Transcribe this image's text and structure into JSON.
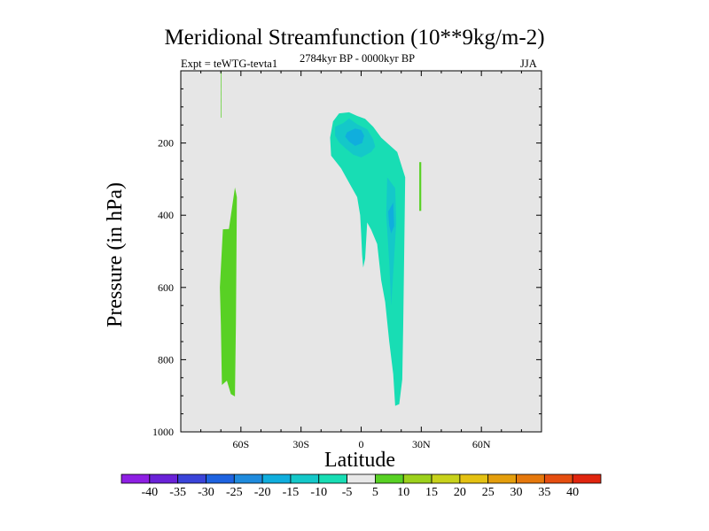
{
  "chart_data": {
    "type": "contour",
    "title": "Meridional Streamfunction (10**9kg/m-2)",
    "subtitle_left": "Expt = teWTG-tevta1",
    "subtitle_center": "2784kyr BP - 0000kyr BP",
    "subtitle_right": "JJA",
    "xlabel": "Latitude",
    "ylabel": "Pressure (in hPa)",
    "xlim": [
      -90,
      90
    ],
    "ylim": [
      1000,
      0
    ],
    "x_ticks": [
      {
        "value": -60,
        "label": "60S"
      },
      {
        "value": -30,
        "label": "30S"
      },
      {
        "value": 0,
        "label": "0"
      },
      {
        "value": 30,
        "label": "30N"
      },
      {
        "value": 60,
        "label": "60N"
      }
    ],
    "y_ticks": [
      {
        "value": 200,
        "label": "200"
      },
      {
        "value": 400,
        "label": "400"
      },
      {
        "value": 600,
        "label": "600"
      },
      {
        "value": 800,
        "label": "800"
      },
      {
        "value": 1000,
        "label": "1000"
      }
    ],
    "background_color": "#e6e6e6",
    "colorbar": {
      "labels": [
        "-40",
        "-35",
        "-30",
        "-25",
        "-20",
        "-15",
        "-10",
        "-5",
        "5",
        "10",
        "15",
        "20",
        "25",
        "30",
        "35",
        "40"
      ],
      "colors": [
        "#8e1fe3",
        "#6a22d8",
        "#3a44d9",
        "#1e63e0",
        "#1f8bdd",
        "#10aedd",
        "#14c8c9",
        "#18ddb4",
        "#e8e8e8",
        "#58d124",
        "#9cd11c",
        "#c8d21b",
        "#e4c112",
        "#e49e0c",
        "#e5780c",
        "#e54e10",
        "#e0250f"
      ]
    },
    "regions": [
      {
        "name": "positive-cell-sh",
        "color": "#58d124",
        "points": [
          [
            -69,
            439
          ],
          [
            -66,
            438
          ],
          [
            -63,
            323
          ],
          [
            -62,
            350
          ],
          [
            -62.5,
            700
          ],
          [
            -63,
            902
          ],
          [
            -65,
            895
          ],
          [
            -67,
            858
          ],
          [
            -69.5,
            870
          ],
          [
            -70,
            700
          ],
          [
            -70.5,
            600
          ]
        ]
      },
      {
        "name": "positive-thin-line",
        "color": "#58d124",
        "points": [
          [
            -70,
            0
          ],
          [
            -69.7,
            0
          ],
          [
            -69.8,
            130
          ],
          [
            -70.1,
            130
          ]
        ]
      },
      {
        "name": "positive-cell-nh",
        "color": "#58d124",
        "points": [
          [
            29,
            253
          ],
          [
            30,
            253
          ],
          [
            30,
            388
          ],
          [
            29,
            388
          ]
        ]
      },
      {
        "name": "negative-main",
        "color": "#18ddb4",
        "points": [
          [
            -15,
            235
          ],
          [
            -15.5,
            185
          ],
          [
            -14,
            140
          ],
          [
            -11,
            118
          ],
          [
            -6,
            115
          ],
          [
            -2,
            125
          ],
          [
            2,
            133
          ],
          [
            6,
            155
          ],
          [
            10,
            185
          ],
          [
            18,
            225
          ],
          [
            22,
            295
          ],
          [
            21.5,
            500
          ],
          [
            21,
            700
          ],
          [
            20.5,
            855
          ],
          [
            19,
            923
          ],
          [
            17,
            928
          ],
          [
            16,
            840
          ],
          [
            14,
            750
          ],
          [
            12,
            640
          ],
          [
            10,
            580
          ],
          [
            8,
            480
          ],
          [
            5,
            440
          ],
          [
            3,
            420
          ],
          [
            2,
            520
          ],
          [
            1,
            545
          ],
          [
            0.5,
            510
          ],
          [
            0,
            450
          ],
          [
            -0.5,
            400
          ],
          [
            -2,
            350
          ],
          [
            -6,
            310
          ],
          [
            -10,
            270
          ]
        ]
      },
      {
        "name": "negative-inner",
        "color": "#14c8c9",
        "points": [
          [
            -13,
            180
          ],
          [
            -13,
            155
          ],
          [
            -9,
            145
          ],
          [
            -6,
            132
          ],
          [
            -2,
            148
          ],
          [
            3,
            162
          ],
          [
            6,
            190
          ],
          [
            7,
            210
          ],
          [
            5,
            225
          ],
          [
            0,
            240
          ],
          [
            -4,
            232
          ],
          [
            -8,
            214
          ],
          [
            -11,
            198
          ]
        ]
      },
      {
        "name": "negative-inner-tail",
        "color": "#14c8c9",
        "points": [
          [
            13,
            295
          ],
          [
            17,
            325
          ],
          [
            17.5,
            420
          ],
          [
            16,
            560
          ],
          [
            15,
            650
          ],
          [
            14,
            530
          ],
          [
            12.5,
            400
          ]
        ]
      },
      {
        "name": "negative-core",
        "color": "#10aedd",
        "points": [
          [
            -7,
            170
          ],
          [
            -3,
            160
          ],
          [
            0,
            164
          ],
          [
            1.5,
            180
          ],
          [
            0.5,
            200
          ],
          [
            -3,
            208
          ],
          [
            -6,
            196
          ],
          [
            -8,
            182
          ]
        ]
      },
      {
        "name": "negative-core-tail",
        "color": "#10aedd",
        "points": [
          [
            13.5,
            390
          ],
          [
            16,
            365
          ],
          [
            16.5,
            430
          ],
          [
            15,
            450
          ],
          [
            14,
            430
          ]
        ]
      }
    ]
  }
}
